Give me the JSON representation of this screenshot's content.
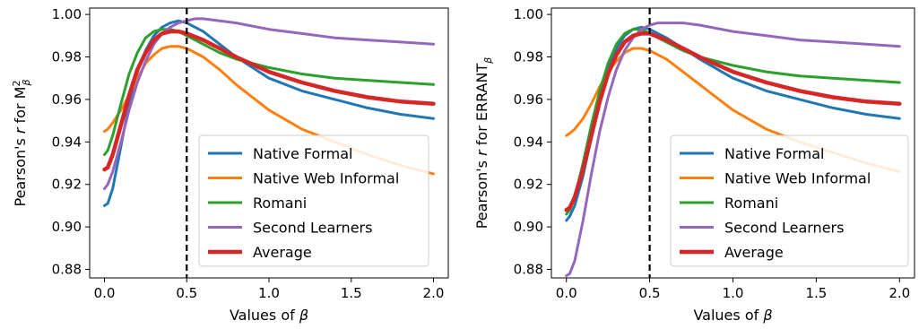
{
  "chart_data": [
    {
      "type": "line",
      "xlabel_prefix": "Values of ",
      "xlabel_symbol": "β",
      "ylabel_prefix": "Pearson's ",
      "ylabel_r": "r",
      "ylabel_middle": " for M",
      "ylabel_sup": "2",
      "ylabel_sub": "β",
      "xlim": [
        -0.09,
        2.09
      ],
      "ylim": [
        0.876,
        1.003
      ],
      "xticks": [
        0.0,
        0.5,
        1.0,
        1.5,
        2.0
      ],
      "xtick_labels": [
        "0.0",
        "0.5",
        "1.0",
        "1.5",
        "2.0"
      ],
      "yticks": [
        0.88,
        0.9,
        0.92,
        0.94,
        0.96,
        0.98,
        1.0
      ],
      "ytick_labels": [
        "0.88",
        "0.90",
        "0.92",
        "0.94",
        "0.96",
        "0.98",
        "1.00"
      ],
      "vline_x": 0.5,
      "grid": false,
      "legend_position": "lower-right",
      "series": [
        {
          "name": "Native Formal",
          "color": "#1f77b4",
          "x": [
            0.0,
            0.02,
            0.05,
            0.1,
            0.15,
            0.2,
            0.25,
            0.3,
            0.35,
            0.4,
            0.45,
            0.5,
            0.6,
            0.7,
            0.8,
            1.0,
            1.2,
            1.4,
            1.6,
            1.8,
            2.0
          ],
          "y": [
            0.91,
            0.911,
            0.918,
            0.938,
            0.958,
            0.973,
            0.983,
            0.99,
            0.994,
            0.996,
            0.997,
            0.996,
            0.992,
            0.986,
            0.98,
            0.97,
            0.964,
            0.96,
            0.956,
            0.953,
            0.951
          ]
        },
        {
          "name": "Native Web Informal",
          "color": "#ff7f0e",
          "x": [
            0.0,
            0.02,
            0.05,
            0.1,
            0.15,
            0.2,
            0.25,
            0.3,
            0.35,
            0.4,
            0.45,
            0.5,
            0.6,
            0.7,
            0.8,
            1.0,
            1.2,
            1.4,
            1.6,
            1.8,
            2.0
          ],
          "y": [
            0.945,
            0.946,
            0.949,
            0.955,
            0.962,
            0.97,
            0.977,
            0.981,
            0.984,
            0.985,
            0.985,
            0.984,
            0.98,
            0.974,
            0.967,
            0.955,
            0.946,
            0.94,
            0.934,
            0.929,
            0.925
          ]
        },
        {
          "name": "Romani",
          "color": "#2ca02c",
          "x": [
            0.0,
            0.02,
            0.05,
            0.1,
            0.15,
            0.2,
            0.25,
            0.3,
            0.35,
            0.4,
            0.45,
            0.5,
            0.6,
            0.7,
            0.8,
            1.0,
            1.2,
            1.4,
            1.6,
            1.8,
            2.0
          ],
          "y": [
            0.934,
            0.936,
            0.943,
            0.958,
            0.972,
            0.982,
            0.989,
            0.992,
            0.993,
            0.993,
            0.992,
            0.99,
            0.986,
            0.982,
            0.979,
            0.975,
            0.972,
            0.97,
            0.969,
            0.968,
            0.967
          ]
        },
        {
          "name": "Second Learners",
          "color": "#9467bd",
          "x": [
            0.0,
            0.02,
            0.05,
            0.1,
            0.15,
            0.2,
            0.25,
            0.3,
            0.35,
            0.4,
            0.45,
            0.5,
            0.55,
            0.6,
            0.7,
            0.8,
            1.0,
            1.2,
            1.4,
            1.6,
            1.8,
            2.0
          ],
          "y": [
            0.918,
            0.92,
            0.926,
            0.94,
            0.955,
            0.968,
            0.978,
            0.986,
            0.991,
            0.994,
            0.996,
            0.997,
            0.998,
            0.998,
            0.997,
            0.996,
            0.993,
            0.991,
            0.989,
            0.988,
            0.987,
            0.986
          ]
        },
        {
          "name": "Average",
          "color": "#d62728",
          "thick": true,
          "x": [
            0.0,
            0.02,
            0.05,
            0.1,
            0.15,
            0.2,
            0.25,
            0.3,
            0.35,
            0.4,
            0.45,
            0.5,
            0.6,
            0.7,
            0.8,
            1.0,
            1.2,
            1.4,
            1.6,
            1.8,
            2.0
          ],
          "y": [
            0.927,
            0.928,
            0.934,
            0.948,
            0.962,
            0.974,
            0.982,
            0.988,
            0.991,
            0.992,
            0.992,
            0.991,
            0.988,
            0.984,
            0.98,
            0.973,
            0.968,
            0.964,
            0.961,
            0.959,
            0.958
          ]
        }
      ]
    },
    {
      "type": "line",
      "xlabel_prefix": "Values of ",
      "xlabel_symbol": "β",
      "ylabel_prefix": "Pearson's ",
      "ylabel_r": "r",
      "ylabel_middle": " for ERRANT",
      "ylabel_sup": "",
      "ylabel_sub": "β",
      "xlim": [
        -0.09,
        2.09
      ],
      "ylim": [
        0.876,
        1.003
      ],
      "xticks": [
        0.0,
        0.5,
        1.0,
        1.5,
        2.0
      ],
      "xtick_labels": [
        "0.0",
        "0.5",
        "1.0",
        "1.5",
        "2.0"
      ],
      "yticks": [
        0.88,
        0.9,
        0.92,
        0.94,
        0.96,
        0.98,
        1.0
      ],
      "ytick_labels": [
        "0.88",
        "0.90",
        "0.92",
        "0.94",
        "0.96",
        "0.98",
        "1.00"
      ],
      "vline_x": 0.5,
      "grid": false,
      "legend_position": "lower-right",
      "series": [
        {
          "name": "Native Formal",
          "color": "#1f77b4",
          "x": [
            0.0,
            0.02,
            0.05,
            0.1,
            0.15,
            0.2,
            0.25,
            0.3,
            0.35,
            0.4,
            0.45,
            0.5,
            0.6,
            0.7,
            0.8,
            1.0,
            1.2,
            1.4,
            1.6,
            1.8,
            2.0
          ],
          "y": [
            0.903,
            0.905,
            0.91,
            0.924,
            0.942,
            0.96,
            0.974,
            0.984,
            0.99,
            0.993,
            0.994,
            0.993,
            0.989,
            0.984,
            0.979,
            0.97,
            0.964,
            0.96,
            0.956,
            0.953,
            0.951
          ]
        },
        {
          "name": "Native Web Informal",
          "color": "#ff7f0e",
          "x": [
            0.0,
            0.02,
            0.05,
            0.1,
            0.15,
            0.2,
            0.25,
            0.3,
            0.35,
            0.4,
            0.45,
            0.5,
            0.6,
            0.7,
            0.8,
            1.0,
            1.2,
            1.4,
            1.6,
            1.8,
            2.0
          ],
          "y": [
            0.943,
            0.944,
            0.946,
            0.951,
            0.958,
            0.966,
            0.973,
            0.978,
            0.982,
            0.984,
            0.984,
            0.983,
            0.979,
            0.973,
            0.967,
            0.955,
            0.946,
            0.94,
            0.935,
            0.93,
            0.926
          ]
        },
        {
          "name": "Romani",
          "color": "#2ca02c",
          "x": [
            0.0,
            0.02,
            0.05,
            0.1,
            0.15,
            0.2,
            0.25,
            0.3,
            0.35,
            0.4,
            0.45,
            0.5,
            0.6,
            0.7,
            0.8,
            1.0,
            1.2,
            1.4,
            1.6,
            1.8,
            2.0
          ],
          "y": [
            0.906,
            0.908,
            0.914,
            0.93,
            0.948,
            0.964,
            0.977,
            0.986,
            0.991,
            0.993,
            0.993,
            0.991,
            0.987,
            0.983,
            0.98,
            0.976,
            0.973,
            0.971,
            0.97,
            0.969,
            0.968
          ]
        },
        {
          "name": "Second Learners",
          "color": "#9467bd",
          "x": [
            0.0,
            0.02,
            0.05,
            0.1,
            0.15,
            0.2,
            0.25,
            0.3,
            0.35,
            0.4,
            0.45,
            0.5,
            0.55,
            0.6,
            0.65,
            0.7,
            0.8,
            1.0,
            1.2,
            1.4,
            1.6,
            1.8,
            2.0
          ],
          "y": [
            0.877,
            0.878,
            0.884,
            0.903,
            0.925,
            0.945,
            0.961,
            0.974,
            0.983,
            0.989,
            0.993,
            0.995,
            0.996,
            0.996,
            0.996,
            0.996,
            0.995,
            0.992,
            0.99,
            0.988,
            0.987,
            0.986,
            0.985
          ]
        },
        {
          "name": "Average",
          "color": "#d62728",
          "thick": true,
          "x": [
            0.0,
            0.02,
            0.05,
            0.1,
            0.15,
            0.2,
            0.25,
            0.3,
            0.35,
            0.4,
            0.45,
            0.5,
            0.6,
            0.7,
            0.8,
            1.0,
            1.2,
            1.4,
            1.6,
            1.8,
            2.0
          ],
          "y": [
            0.908,
            0.909,
            0.914,
            0.927,
            0.943,
            0.959,
            0.972,
            0.981,
            0.987,
            0.99,
            0.991,
            0.991,
            0.988,
            0.984,
            0.98,
            0.973,
            0.968,
            0.964,
            0.961,
            0.959,
            0.958
          ]
        }
      ]
    }
  ]
}
